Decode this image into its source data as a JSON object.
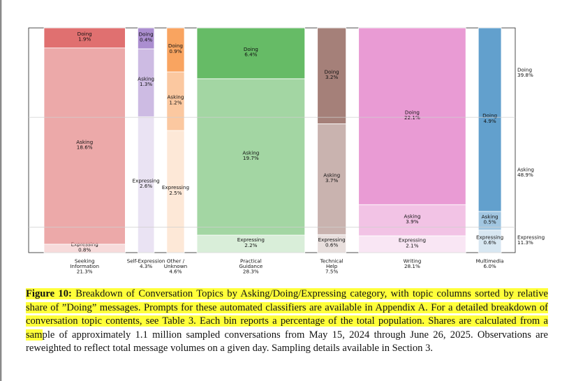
{
  "chart_data": {
    "type": "marimekko",
    "y_range": [
      0,
      100
    ],
    "segment_order": [
      "Expressing",
      "Asking",
      "Doing"
    ],
    "columns": [
      {
        "category": "Seeking Information",
        "label_lines": [
          "Seeking",
          "Information"
        ],
        "width_label": "21.3%",
        "width": 21.3,
        "color": "#e07070",
        "segments": [
          {
            "name": "Expressing",
            "value": 0.8,
            "label": "0.8%"
          },
          {
            "name": "Asking",
            "value": 18.6,
            "label": "18.6%"
          },
          {
            "name": "Doing",
            "value": 1.9,
            "label": "1.9%"
          }
        ]
      },
      {
        "category": "Self-Expression",
        "label_lines": [
          "Self-Expression"
        ],
        "width_label": "4.3%",
        "width": 4.3,
        "color": "#ab8ed0",
        "segments": [
          {
            "name": "Expressing",
            "value": 2.6,
            "label": "2.6%"
          },
          {
            "name": "Asking",
            "value": 1.3,
            "label": "1.3%"
          },
          {
            "name": "Doing",
            "value": 0.4,
            "label": "0.4%"
          }
        ]
      },
      {
        "category": "Other / Unknown",
        "label_lines": [
          "Other /",
          "Unknown"
        ],
        "width_label": "4.6%",
        "width": 4.6,
        "color": "#f9a460",
        "segments": [
          {
            "name": "Expressing",
            "value": 2.5,
            "label": "2.5%"
          },
          {
            "name": "Asking",
            "value": 1.2,
            "label": "1.2%"
          },
          {
            "name": "Doing",
            "value": 0.9,
            "label": "0.9%"
          }
        ]
      },
      {
        "category": "Practical Guidance",
        "label_lines": [
          "Practical",
          "Guidance"
        ],
        "width_label": "28.3%",
        "width": 28.3,
        "color": "#66bb66",
        "segments": [
          {
            "name": "Expressing",
            "value": 2.2,
            "label": "2.2%"
          },
          {
            "name": "Asking",
            "value": 19.7,
            "label": "19.7%"
          },
          {
            "name": "Doing",
            "value": 6.4,
            "label": "6.4%"
          }
        ]
      },
      {
        "category": "Technical Help",
        "label_lines": [
          "Technical",
          "Help"
        ],
        "width_label": "7.5%",
        "width": 7.5,
        "color": "#a58079",
        "segments": [
          {
            "name": "Expressing",
            "value": 0.6,
            "label": "0.6%"
          },
          {
            "name": "Asking",
            "value": 3.7,
            "label": "3.7%"
          },
          {
            "name": "Doing",
            "value": 3.2,
            "label": "3.2%"
          }
        ]
      },
      {
        "category": "Writing",
        "label_lines": [
          "Writing"
        ],
        "width_label": "28.1%",
        "width": 28.1,
        "color": "#e99bd4",
        "segments": [
          {
            "name": "Expressing",
            "value": 2.1,
            "label": "2.1%"
          },
          {
            "name": "Asking",
            "value": 3.9,
            "label": "3.9%"
          },
          {
            "name": "Doing",
            "value": 22.1,
            "label": "22.1%"
          }
        ]
      },
      {
        "category": "Multimedia",
        "label_lines": [
          "Multimedia"
        ],
        "width_label": "6.0%",
        "width": 6.0,
        "color": "#62a0cd",
        "segments": [
          {
            "name": "Expressing",
            "value": 0.6,
            "label": "0.6%"
          },
          {
            "name": "Asking",
            "value": 0.5,
            "label": "0.5%"
          },
          {
            "name": "Doing",
            "value": 4.9,
            "label": "4.9%"
          }
        ]
      }
    ],
    "totals": [
      {
        "name": "Doing",
        "value": 39.8,
        "label": "39.8%"
      },
      {
        "name": "Asking",
        "value": 48.9,
        "label": "48.9%"
      },
      {
        "name": "Expressing",
        "value": 11.3,
        "label": "11.3%"
      }
    ],
    "segment_alpha": {
      "Doing": 1.0,
      "Asking": 0.6,
      "Expressing": 0.25
    }
  },
  "caption": {
    "label": "Figure 10:",
    "highlighted_text": " Breakdown of Conversation Topics by Asking/Doing/Expressing category, with topic columns sorted by relative share of ”Doing” messages. Prompts for these automated classifiers are available in Appendix A. For a detailed breakdown of conversation topic contents, see Table 3. Each bin reports a percentage of the total population. Shares are calculated from a sam",
    "plain_text": "ple of approximately 1.1 million sampled conversations from May 15, 2024 through June 26, 2025. Observations are reweighted to reflect total message volumes on a given day. Sampling details available in Section 3."
  }
}
